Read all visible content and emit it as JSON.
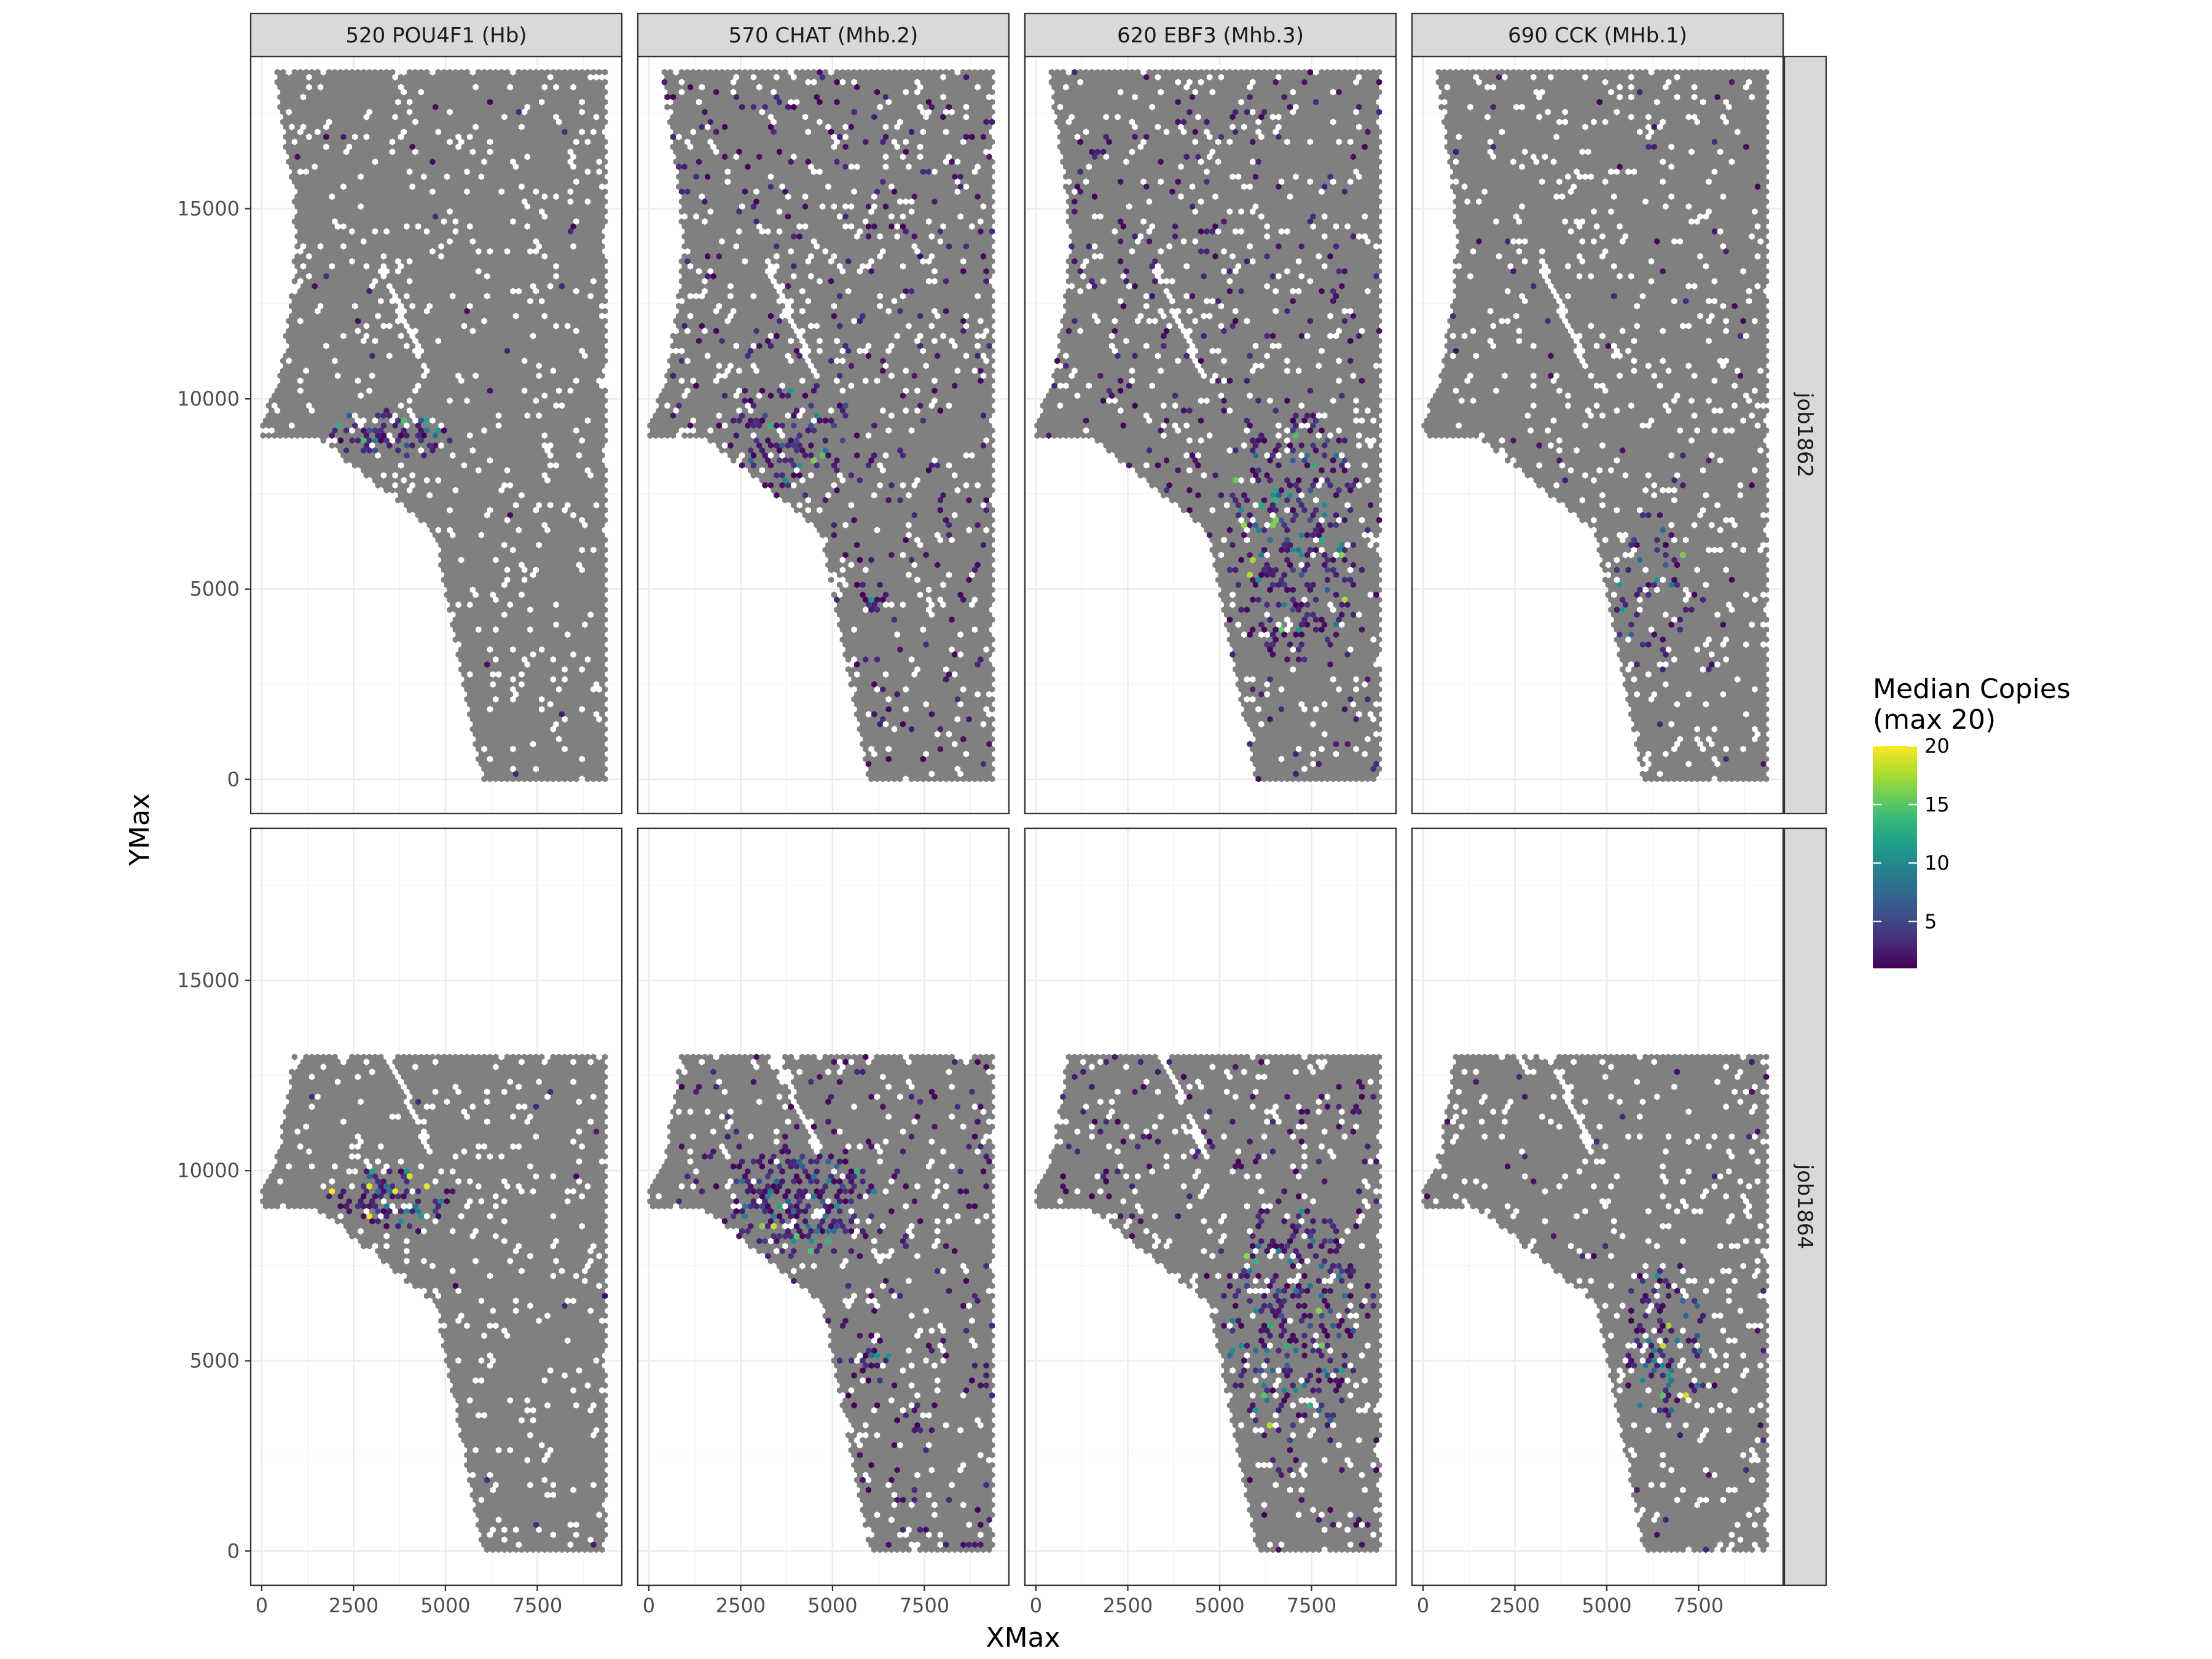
{
  "chart_data": {
    "type": "heatmap",
    "subtype": "hexbin-faceted",
    "xlabel": "XMax",
    "ylabel": "YMax",
    "xlim": [
      -300,
      9800
    ],
    "ylim_rows": [
      [
        -900,
        19000
      ],
      [
        -900,
        19000
      ]
    ],
    "x_ticks": [
      0,
      2500,
      5000,
      7500
    ],
    "y_ticks": [
      0,
      5000,
      10000,
      15000
    ],
    "x_tick_labels": [
      "0",
      "2500",
      "5000",
      "7500"
    ],
    "y_tick_labels": [
      "0",
      "5000",
      "10000",
      "15000"
    ],
    "grid": true,
    "column_facets": [
      "520 POU4F1 (Hb)",
      "570 CHAT (Mhb.2)",
      "620 EBF3 (Mhb.3)",
      "690 CCK (MHb.1)"
    ],
    "row_facets": [
      "job1862",
      "job1864"
    ],
    "background_fill_color": "#808080",
    "legend": {
      "title_lines": [
        "Median Copies",
        "(max 20)"
      ],
      "position": "right",
      "min": 1,
      "max": 20,
      "ticks": [
        5,
        10,
        15,
        20
      ],
      "tick_labels": [
        "5",
        "10",
        "15",
        "20"
      ],
      "colors": [
        "#440154",
        "#482878",
        "#3e4a89",
        "#31688e",
        "#26828e",
        "#1f9e89",
        "#35b779",
        "#6ece58",
        "#b5de2b",
        "#fde725"
      ]
    },
    "tissue_outline": {
      "job1862": {
        "x_left_top": 600,
        "y_top": 18700,
        "x_right": 9400,
        "y_bottom": 0,
        "notch_y": 9000,
        "x_bottom_left": 6000
      },
      "job1864": {
        "x_left_top": 600,
        "y_top": 13100,
        "x_right": 9400,
        "y_bottom": 0,
        "notch_y": 9000,
        "x_bottom_left": 6000
      }
    },
    "hotspots": [
      {
        "gene": "520 POU4F1 (Hb)",
        "sample": "job1862",
        "center": [
          3500,
          9100
        ],
        "spread": [
          1700,
          700
        ],
        "density": "high",
        "peak_copies": 18
      },
      {
        "gene": "520 POU4F1 (Hb)",
        "sample": "job1864",
        "center": [
          3500,
          9300
        ],
        "spread": [
          1800,
          800
        ],
        "density": "high",
        "peak_copies": 20
      },
      {
        "gene": "570 CHAT (Mhb.2)",
        "sample": "job1862",
        "center": [
          4000,
          9000
        ],
        "spread": [
          1800,
          1500
        ],
        "density": "medium",
        "peak_copies": 20
      },
      {
        "gene": "570 CHAT (Mhb.2)",
        "sample": "job1862",
        "center": [
          6000,
          4800
        ],
        "spread": [
          500,
          700
        ],
        "density": "medium",
        "peak_copies": 10
      },
      {
        "gene": "570 CHAT (Mhb.2)",
        "sample": "job1864",
        "center": [
          4200,
          9200
        ],
        "spread": [
          2000,
          1500
        ],
        "density": "high",
        "peak_copies": 20
      },
      {
        "gene": "570 CHAT (Mhb.2)",
        "sample": "job1864",
        "center": [
          6100,
          4900
        ],
        "spread": [
          500,
          500
        ],
        "density": "high",
        "peak_copies": 8
      },
      {
        "gene": "620 EBF3 (Mhb.3)",
        "sample": "job1862",
        "center": [
          7000,
          6500
        ],
        "spread": [
          1800,
          3500
        ],
        "density": "medium",
        "peak_copies": 18
      },
      {
        "gene": "620 EBF3 (Mhb.3)",
        "sample": "job1864",
        "center": [
          7000,
          6000
        ],
        "spread": [
          1800,
          3500
        ],
        "density": "medium",
        "peak_copies": 18
      },
      {
        "gene": "690 CCK (MHb.1)",
        "sample": "job1862",
        "center": [
          6200,
          5000
        ],
        "spread": [
          1200,
          2200
        ],
        "density": "low",
        "peak_copies": 20
      },
      {
        "gene": "690 CCK (MHb.1)",
        "sample": "job1864",
        "center": [
          6600,
          5500
        ],
        "spread": [
          1200,
          2200
        ],
        "density": "medium",
        "peak_copies": 20
      }
    ],
    "background_sparse_rate": {
      "520 POU4F1 (Hb)": 0.004,
      "570 CHAT (Mhb.2)": 0.05,
      "620 EBF3 (Mhb.3)": 0.045,
      "690 CCK (MHb.1)": 0.01
    }
  }
}
